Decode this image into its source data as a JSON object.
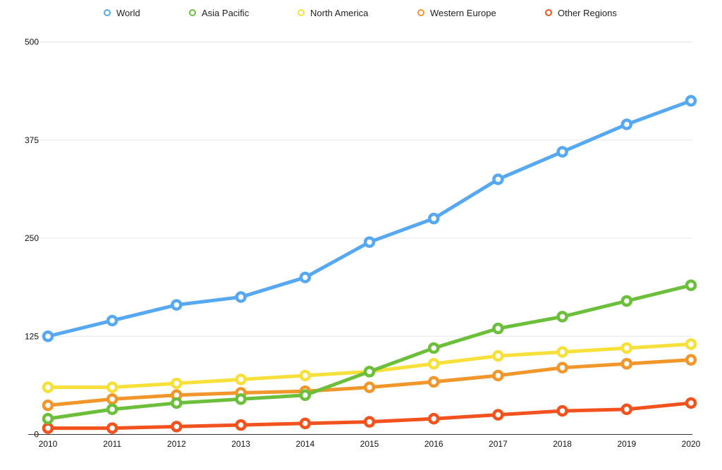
{
  "chart_data": {
    "type": "line",
    "categories": [
      "2010",
      "2011",
      "2012",
      "2013",
      "2014",
      "2015",
      "2016",
      "2017",
      "2018",
      "2019",
      "2020"
    ],
    "ylim": [
      0,
      500
    ],
    "yticks": [
      0,
      125,
      250,
      375,
      500
    ],
    "grid": true,
    "legend_position": "top",
    "series": [
      {
        "name": "World",
        "color": "#56a8f0",
        "values": [
          125,
          145,
          165,
          175,
          200,
          245,
          275,
          325,
          360,
          395,
          425
        ]
      },
      {
        "name": "Asia Pacific",
        "color": "#6cbf3a",
        "values": [
          20,
          32,
          40,
          45,
          50,
          80,
          110,
          135,
          150,
          170,
          190
        ]
      },
      {
        "name": "North America",
        "color": "#f7e03a",
        "values": [
          60,
          60,
          65,
          70,
          75,
          80,
          90,
          100,
          105,
          110,
          115
        ]
      },
      {
        "name": "Western Europe",
        "color": "#f0962a",
        "values": [
          37,
          45,
          50,
          53,
          55,
          60,
          67,
          75,
          85,
          90,
          95
        ]
      },
      {
        "name": "Other Regions",
        "color": "#f2521e",
        "values": [
          8,
          8,
          10,
          12,
          14,
          16,
          20,
          25,
          30,
          32,
          40
        ]
      }
    ]
  }
}
